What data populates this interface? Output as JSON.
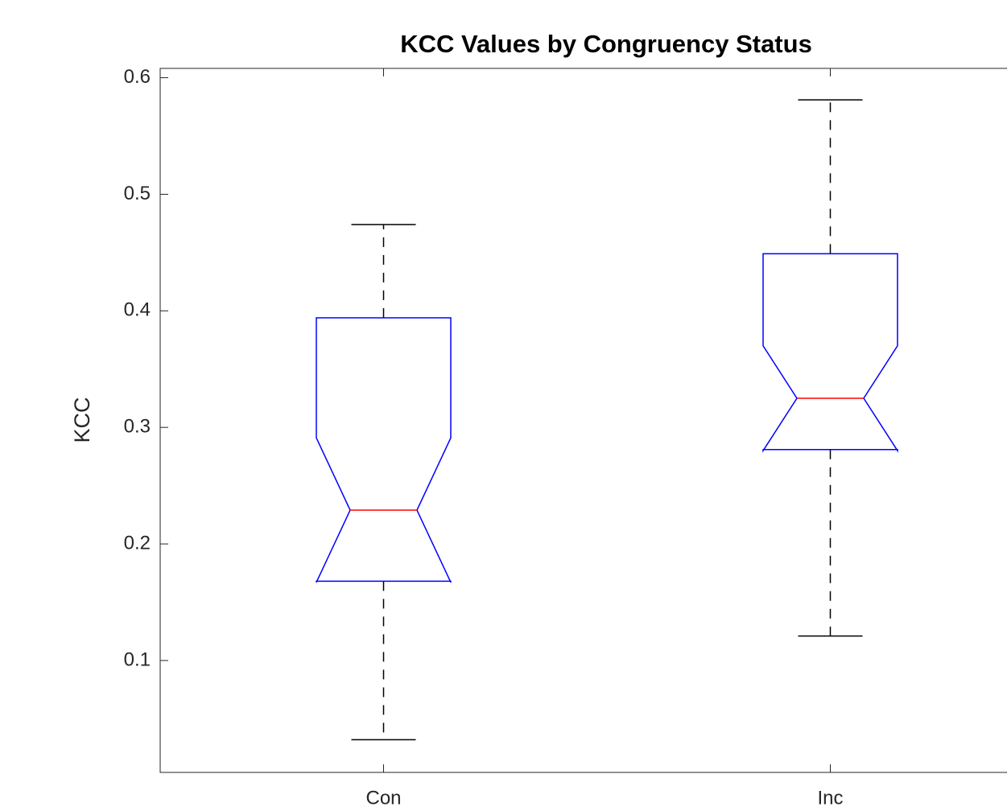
{
  "chart_data": {
    "type": "box",
    "title": "KCC Values by Congruency Status",
    "y_label": "KCC",
    "categories": [
      "Con",
      "Inc"
    ],
    "whisker_low": [
      0.032,
      0.121
    ],
    "q1": [
      0.168,
      0.281
    ],
    "notch_low": [
      0.167,
      0.28
    ],
    "median": [
      0.229,
      0.325
    ],
    "notch_high": [
      0.291,
      0.37
    ],
    "q3": [
      0.394,
      0.449
    ],
    "whisker_high": [
      0.474,
      0.581
    ],
    "box_color": "#0000ff",
    "median_color": "#ff0000",
    "whisker_color": "#000000",
    "xlim": [
      0.5,
      2.5
    ],
    "ylim": [
      0.004,
      0.608
    ],
    "yticks": [
      0.1,
      0.2,
      0.3,
      0.4,
      0.5,
      0.6
    ]
  }
}
